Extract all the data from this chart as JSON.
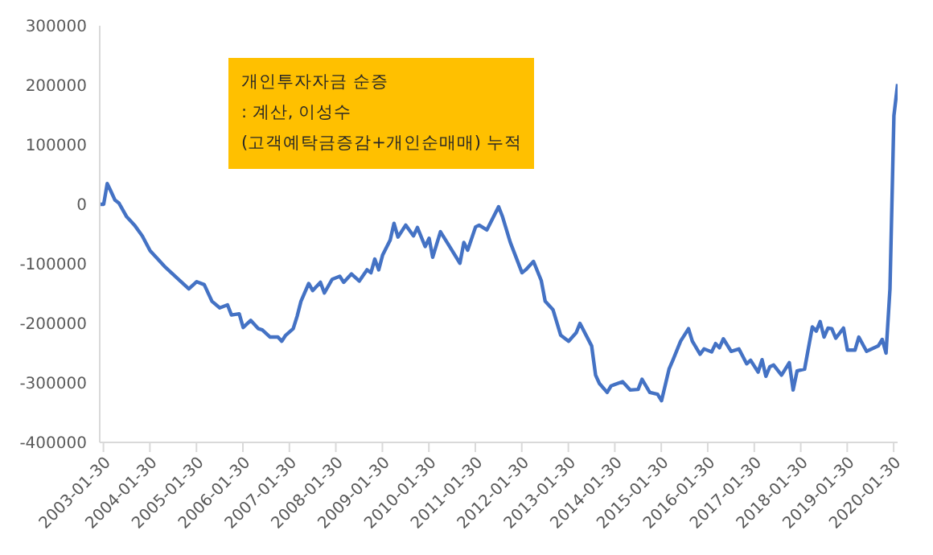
{
  "chart_data": {
    "type": "line",
    "annotations": [
      "개인투자자금 순증",
      ": 계산, 이성수",
      "(고객예탁금증감+개인순매매) 누적"
    ],
    "x": [
      "2003-01",
      "2003-02",
      "2003-03",
      "2003-04",
      "2003-05",
      "2003-06",
      "2003-08",
      "2003-09",
      "2003-10",
      "2003-12",
      "2004-02",
      "2004-04",
      "2004-06",
      "2004-09",
      "2004-12",
      "2005-02",
      "2005-04",
      "2005-06",
      "2005-08",
      "2005-10",
      "2005-11",
      "2006-01",
      "2006-02",
      "2006-04",
      "2006-06",
      "2006-07",
      "2006-09",
      "2006-11",
      "2006-12",
      "2007-01",
      "2007-03",
      "2007-04",
      "2007-05",
      "2007-07",
      "2007-08",
      "2007-10",
      "2007-11",
      "2008-01",
      "2008-03",
      "2008-04",
      "2008-06",
      "2008-08",
      "2008-10",
      "2008-11",
      "2008-12",
      "2009-01",
      "2009-02",
      "2009-04",
      "2009-05",
      "2009-06",
      "2009-08",
      "2009-10",
      "2009-11",
      "2010-01",
      "2010-02",
      "2010-03",
      "2010-05",
      "2010-07",
      "2010-08",
      "2010-10",
      "2010-11",
      "2010-12",
      "2011-02",
      "2011-03",
      "2011-05",
      "2011-08",
      "2011-09",
      "2011-11",
      "2012-02",
      "2012-03",
      "2012-05",
      "2012-07",
      "2012-08",
      "2012-10",
      "2012-12",
      "2013-02",
      "2013-04",
      "2013-05",
      "2013-08",
      "2013-09",
      "2013-10",
      "2013-12",
      "2014-01",
      "2014-04",
      "2014-06",
      "2014-08",
      "2014-09",
      "2014-11",
      "2015-01",
      "2015-02",
      "2015-04",
      "2015-05",
      "2015-07",
      "2015-09",
      "2015-10",
      "2015-12",
      "2016-01",
      "2016-03",
      "2016-04",
      "2016-05",
      "2016-06",
      "2016-08",
      "2016-10",
      "2016-12",
      "2017-01",
      "2017-03",
      "2017-04",
      "2017-05",
      "2017-06",
      "2017-07",
      "2017-09",
      "2017-11",
      "2017-12",
      "2018-01",
      "2018-03",
      "2018-05",
      "2018-06",
      "2018-07",
      "2018-08",
      "2018-09",
      "2018-10",
      "2018-11",
      "2019-01",
      "2019-02",
      "2019-04",
      "2019-05",
      "2019-07",
      "2019-10",
      "2019-11",
      "2019-12",
      "2020-01",
      "2020-02",
      "2020-03"
    ],
    "series": [
      {
        "color": "#4472c4",
        "values": [
          0,
          0,
          35000,
          21000,
          7000,
          2000,
          -21000,
          -28000,
          -35000,
          -53000,
          -78000,
          -92000,
          -106000,
          -124000,
          -142000,
          -130000,
          -135000,
          -163000,
          -174000,
          -169000,
          -186000,
          -184000,
          -207000,
          -195000,
          -209000,
          -211000,
          -223000,
          -223000,
          -230000,
          -220000,
          -209000,
          -188000,
          -163000,
          -133000,
          -145000,
          -131000,
          -149000,
          -126000,
          -121000,
          -131000,
          -117000,
          -129000,
          -110000,
          -115000,
          -92000,
          -110000,
          -85000,
          -60000,
          -32000,
          -55000,
          -35000,
          -53000,
          -39000,
          -71000,
          -57000,
          -89000,
          -46000,
          -67000,
          -78000,
          -99000,
          -64000,
          -77000,
          -38000,
          -35000,
          -43000,
          -4000,
          -21000,
          -64000,
          -115000,
          -110000,
          -96000,
          -128000,
          -163000,
          -177000,
          -220000,
          -230000,
          -216000,
          -200000,
          -238000,
          -287000,
          -301000,
          -316000,
          -305000,
          -298000,
          -312000,
          -311000,
          -294000,
          -316000,
          -319000,
          -330000,
          -277000,
          -262000,
          -230000,
          -209000,
          -230000,
          -252000,
          -243000,
          -248000,
          -234000,
          -241000,
          -226000,
          -247000,
          -243000,
          -268000,
          -262000,
          -282000,
          -261000,
          -289000,
          -273000,
          -270000,
          -287000,
          -266000,
          -312000,
          -280000,
          -277000,
          -206000,
          -213000,
          -197000,
          -223000,
          -208000,
          -209000,
          -225000,
          -208000,
          -245000,
          -245000,
          -223000,
          -247000,
          -238000,
          -227000,
          -250000,
          -142000,
          149000,
          202000
        ]
      }
    ],
    "xlim": [
      "2003-01",
      "2020-03"
    ],
    "xticks": [
      "2003-01-30",
      "2004-01-30",
      "2005-01-30",
      "2006-01-30",
      "2007-01-30",
      "2008-01-30",
      "2009-01-30",
      "2010-01-30",
      "2011-01-30",
      "2012-01-30",
      "2013-01-30",
      "2014-01-30",
      "2015-01-30",
      "2016-01-30",
      "2017-01-30",
      "2018-01-30",
      "2019-01-30",
      "2020-01-30"
    ],
    "ylim": [
      -400000,
      300000
    ],
    "yticks": [
      -400000,
      -300000,
      -200000,
      -100000,
      0,
      100000,
      200000,
      300000
    ]
  }
}
